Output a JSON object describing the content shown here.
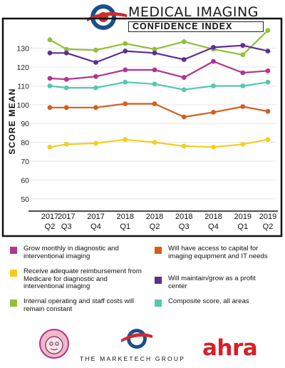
{
  "header": {
    "title_line1": "MEDICAL IMAGING",
    "title_line2": "CONFIDENCE INDEX"
  },
  "colors": {
    "magenta": "#b2358f",
    "orange": "#d45f1e",
    "yellow": "#f2ce20",
    "purple": "#5b2f94",
    "green": "#93bf3d",
    "teal": "#55c7b0",
    "frame": "#111111",
    "grid": "#e6e6e6",
    "logo_blue": "#1a4f8e",
    "logo_red": "#d32a2a",
    "ahra_red": "#d81f26"
  },
  "chart_data": {
    "type": "line",
    "ylabel": "SCORE MEAN",
    "xlabel": "",
    "ylim": [
      45,
      142
    ],
    "yticks": [
      50,
      60,
      70,
      80,
      90,
      100,
      110,
      120,
      130
    ],
    "grid": true,
    "legend_placement": "bottom",
    "categories": [
      {
        "year": "2017",
        "quarter": "Q2"
      },
      {
        "year": "2017",
        "quarter": "Q3"
      },
      {
        "year": "2017",
        "quarter": "Q4"
      },
      {
        "year": "2018",
        "quarter": "Q1"
      },
      {
        "year": "2018",
        "quarter": "Q2"
      },
      {
        "year": "2018",
        "quarter": "Q3"
      },
      {
        "year": "2018",
        "quarter": "Q4"
      },
      {
        "year": "2019",
        "quarter": "Q1"
      },
      {
        "year": "2019",
        "quarter": "Q2"
      }
    ],
    "series": [
      {
        "name": "Internal operating and staff costs will remain constant",
        "color": "#93bf3d",
        "values": [
          134.5,
          129.5,
          129.0,
          132.5,
          129.5,
          133.5,
          129.5,
          126.5,
          139.5
        ]
      },
      {
        "name": "Will maintain/grow as a profit center",
        "color": "#5b2f94",
        "values": [
          127.5,
          127.5,
          122.5,
          128.5,
          127.5,
          124.0,
          130.5,
          131.5,
          128.5
        ]
      },
      {
        "name": "Grow monthly in diagnostic and interventional imaging",
        "color": "#b2358f",
        "values": [
          114.0,
          113.5,
          115.0,
          118.5,
          118.5,
          114.5,
          123.0,
          117.0,
          118.0
        ]
      },
      {
        "name": "Composite score, all areas",
        "color": "#55c7b0",
        "values": [
          110.0,
          109.0,
          109.0,
          112.0,
          111.0,
          108.0,
          110.0,
          110.0,
          112.0
        ]
      },
      {
        "name": "Will have access to capital for imaging equipment and IT needs",
        "color": "#d45f1e",
        "values": [
          98.5,
          98.5,
          98.5,
          100.5,
          100.5,
          93.5,
          96.0,
          99.0,
          96.5
        ]
      },
      {
        "name": "Receive adequate reimbursement from Medicare for diagnostic and interventional imaging",
        "color": "#f2ce20",
        "values": [
          77.5,
          79.0,
          79.5,
          81.5,
          80.0,
          78.0,
          77.5,
          79.0,
          81.5
        ]
      }
    ]
  },
  "legend": [
    {
      "label": "Grow monthly in diagnostic and interventional imaging",
      "color": "#b2358f"
    },
    {
      "label": "Will have access to capital for imaging equipment and IT needs",
      "color": "#d45f1e"
    },
    {
      "label": "Receive adequate reimbursement from Medicare for diagnostic and interventional imaging",
      "color": "#f2ce20"
    },
    {
      "label": "Will maintain/grow as a profit center",
      "color": "#5b2f94"
    },
    {
      "label": "Internal operating and staff costs will remain constant",
      "color": "#93bf3d"
    },
    {
      "label": "Composite score, all areas",
      "color": "#55c7b0"
    }
  ],
  "footer": {
    "marketech": "THE MARKETECH GROUP",
    "ahra": "ahra"
  }
}
